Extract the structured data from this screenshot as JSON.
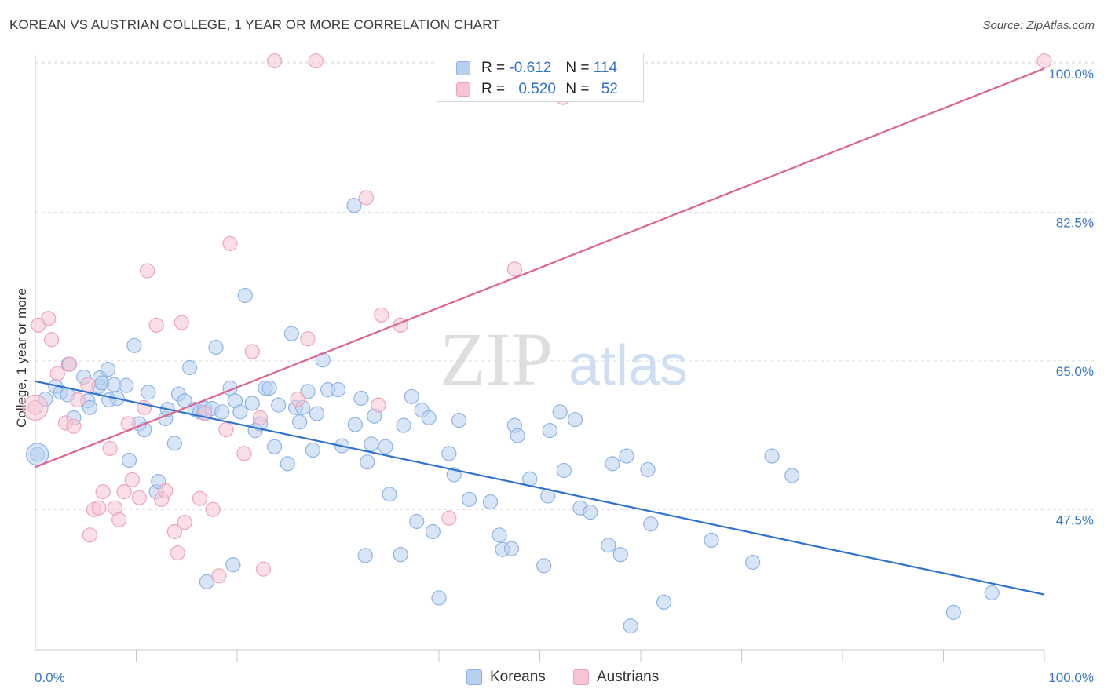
{
  "title": "KOREAN VS AUSTRIAN COLLEGE, 1 YEAR OR MORE CORRELATION CHART",
  "source": "Source: ZipAtlas.com",
  "watermark": {
    "zip": "ZIP",
    "atlas": "atlas"
  },
  "legend": {
    "rows": [
      {
        "r_label": "R =",
        "r_value": "-0.612",
        "n_label": "N =",
        "n_value": "114"
      },
      {
        "r_label": "R =",
        "r_value": "0.520",
        "n_label": "N =",
        "n_value": "52"
      }
    ]
  },
  "bottom_legend": {
    "koreans": "Koreans",
    "austrians": "Austrians"
  },
  "colors": {
    "korean_fill": "#b8d0f0",
    "korean_stroke": "#8db4e6",
    "korean_line": "#2f72d0",
    "austrian_fill": "#f8c4d4",
    "austrian_stroke": "#eea3bd",
    "austrian_line": "#e0638f",
    "tick_label": "#3a78d0",
    "grid": "#dedede"
  },
  "chart_data": {
    "type": "scatter",
    "title": "KOREAN VS AUSTRIAN COLLEGE, 1 YEAR OR MORE CORRELATION CHART",
    "xlabel": "",
    "ylabel": "College, 1 year or more",
    "xlim": [
      0,
      100
    ],
    "ylim": [
      31,
      101
    ],
    "x_tick_labels": [
      "0.0%",
      "100.0%"
    ],
    "y_ticks": [
      47.5,
      65.0,
      82.5,
      100.0
    ],
    "y_tick_labels": [
      "47.5%",
      "65.0%",
      "82.5%",
      "100.0%"
    ],
    "grid": true,
    "legend_position": "top-center",
    "series": [
      {
        "name": "Koreans",
        "r": -0.612,
        "n": 114,
        "trend": {
          "x": [
            0,
            100
          ],
          "y": [
            62.6,
            37.5
          ]
        },
        "points": [
          [
            0.2,
            54.0
          ],
          [
            1.0,
            60.5
          ],
          [
            2.0,
            62.0
          ],
          [
            2.5,
            61.3
          ],
          [
            3.2,
            61.0
          ],
          [
            3.3,
            64.6
          ],
          [
            3.8,
            58.3
          ],
          [
            4.8,
            63.1
          ],
          [
            5.2,
            60.3
          ],
          [
            5.4,
            59.5
          ],
          [
            6.3,
            62.0
          ],
          [
            6.4,
            63.0
          ],
          [
            6.6,
            62.4
          ],
          [
            7.2,
            64.0
          ],
          [
            7.3,
            60.4
          ],
          [
            7.8,
            62.2
          ],
          [
            8.1,
            60.6
          ],
          [
            9.0,
            62.1
          ],
          [
            9.3,
            53.3
          ],
          [
            9.8,
            66.8
          ],
          [
            10.3,
            57.6
          ],
          [
            10.8,
            56.9
          ],
          [
            11.2,
            61.3
          ],
          [
            12.0,
            49.6
          ],
          [
            12.2,
            50.8
          ],
          [
            12.9,
            58.2
          ],
          [
            13.1,
            59.3
          ],
          [
            13.8,
            55.3
          ],
          [
            14.2,
            61.1
          ],
          [
            14.8,
            60.3
          ],
          [
            15.3,
            64.2
          ],
          [
            15.8,
            59.3
          ],
          [
            16.7,
            58.9
          ],
          [
            16.3,
            59.0
          ],
          [
            16.8,
            59.4
          ],
          [
            17.0,
            39.0
          ],
          [
            17.5,
            59.4
          ],
          [
            17.9,
            66.6
          ],
          [
            18.5,
            59.0
          ],
          [
            19.3,
            61.8
          ],
          [
            19.6,
            41.0
          ],
          [
            19.8,
            60.3
          ],
          [
            20.3,
            59.0
          ],
          [
            20.8,
            72.7
          ],
          [
            21.5,
            60.0
          ],
          [
            21.8,
            56.8
          ],
          [
            22.3,
            57.6
          ],
          [
            22.8,
            61.8
          ],
          [
            23.2,
            61.8
          ],
          [
            23.7,
            54.9
          ],
          [
            24.1,
            59.8
          ],
          [
            25.0,
            52.9
          ],
          [
            25.4,
            68.2
          ],
          [
            25.8,
            59.5
          ],
          [
            26.2,
            57.8
          ],
          [
            26.5,
            59.5
          ],
          [
            27.0,
            61.4
          ],
          [
            27.5,
            54.5
          ],
          [
            27.9,
            58.8
          ],
          [
            28.5,
            65.1
          ],
          [
            29.0,
            61.6
          ],
          [
            30.0,
            61.6
          ],
          [
            30.4,
            55.0
          ],
          [
            31.6,
            83.3
          ],
          [
            31.7,
            57.5
          ],
          [
            32.3,
            60.6
          ],
          [
            32.7,
            42.1
          ],
          [
            32.9,
            53.1
          ],
          [
            33.3,
            55.2
          ],
          [
            33.6,
            58.5
          ],
          [
            34.7,
            54.9
          ],
          [
            35.1,
            49.3
          ],
          [
            36.2,
            42.2
          ],
          [
            36.5,
            57.4
          ],
          [
            37.3,
            60.8
          ],
          [
            37.8,
            46.1
          ],
          [
            38.3,
            59.2
          ],
          [
            39.0,
            58.3
          ],
          [
            39.4,
            44.9
          ],
          [
            40.0,
            37.1
          ],
          [
            41.0,
            54.1
          ],
          [
            41.5,
            51.6
          ],
          [
            42.0,
            58.0
          ],
          [
            43.0,
            48.7
          ],
          [
            45.1,
            48.4
          ],
          [
            46.0,
            44.5
          ],
          [
            46.3,
            42.8
          ],
          [
            47.2,
            42.9
          ],
          [
            47.5,
            57.4
          ],
          [
            47.8,
            56.2
          ],
          [
            49.0,
            51.1
          ],
          [
            50.4,
            40.9
          ],
          [
            50.8,
            49.1
          ],
          [
            51.0,
            56.8
          ],
          [
            52.0,
            59.0
          ],
          [
            52.4,
            52.1
          ],
          [
            53.5,
            58.1
          ],
          [
            54.0,
            47.7
          ],
          [
            55.0,
            47.2
          ],
          [
            56.8,
            43.3
          ],
          [
            57.2,
            52.9
          ],
          [
            58.0,
            42.2
          ],
          [
            58.6,
            53.8
          ],
          [
            59.0,
            33.8
          ],
          [
            60.7,
            52.2
          ],
          [
            61.0,
            45.8
          ],
          [
            62.3,
            36.6
          ],
          [
            67.0,
            43.9
          ],
          [
            71.1,
            41.3
          ],
          [
            73.0,
            53.8
          ],
          [
            75.0,
            51.5
          ],
          [
            91.0,
            35.4
          ],
          [
            94.8,
            37.7
          ]
        ]
      },
      {
        "name": "Austrians",
        "r": 0.52,
        "n": 52,
        "trend": {
          "x": [
            0,
            100
          ],
          "y": [
            52.5,
            99.4
          ]
        },
        "points": [
          [
            0.0,
            59.5
          ],
          [
            0.3,
            69.2
          ],
          [
            1.3,
            70.0
          ],
          [
            1.6,
            67.5
          ],
          [
            2.2,
            63.5
          ],
          [
            3.0,
            57.7
          ],
          [
            3.4,
            64.6
          ],
          [
            3.8,
            57.3
          ],
          [
            4.2,
            60.4
          ],
          [
            5.2,
            62.2
          ],
          [
            5.4,
            44.5
          ],
          [
            5.8,
            47.5
          ],
          [
            6.3,
            47.7
          ],
          [
            6.7,
            49.6
          ],
          [
            7.4,
            54.7
          ],
          [
            7.9,
            47.7
          ],
          [
            8.3,
            46.3
          ],
          [
            8.8,
            49.6
          ],
          [
            9.2,
            57.6
          ],
          [
            9.6,
            51.0
          ],
          [
            10.3,
            48.9
          ],
          [
            10.8,
            59.5
          ],
          [
            11.1,
            75.6
          ],
          [
            12.0,
            69.2
          ],
          [
            12.5,
            48.7
          ],
          [
            12.9,
            49.7
          ],
          [
            13.8,
            44.9
          ],
          [
            14.1,
            42.4
          ],
          [
            14.5,
            69.5
          ],
          [
            14.8,
            46.0
          ],
          [
            16.3,
            48.8
          ],
          [
            16.8,
            58.8
          ],
          [
            17.6,
            47.5
          ],
          [
            18.2,
            39.7
          ],
          [
            18.9,
            56.9
          ],
          [
            19.3,
            78.8
          ],
          [
            20.7,
            54.1
          ],
          [
            21.5,
            66.1
          ],
          [
            22.3,
            58.3
          ],
          [
            22.6,
            40.5
          ],
          [
            23.7,
            100.3
          ],
          [
            26.0,
            60.5
          ],
          [
            27.0,
            67.6
          ],
          [
            27.8,
            100.3
          ],
          [
            32.8,
            84.2
          ],
          [
            34.0,
            59.8
          ],
          [
            34.3,
            70.4
          ],
          [
            36.2,
            69.2
          ],
          [
            41.0,
            46.5
          ],
          [
            47.5,
            75.8
          ],
          [
            52.3,
            96.0
          ],
          [
            100.0,
            100.3
          ]
        ]
      }
    ]
  }
}
